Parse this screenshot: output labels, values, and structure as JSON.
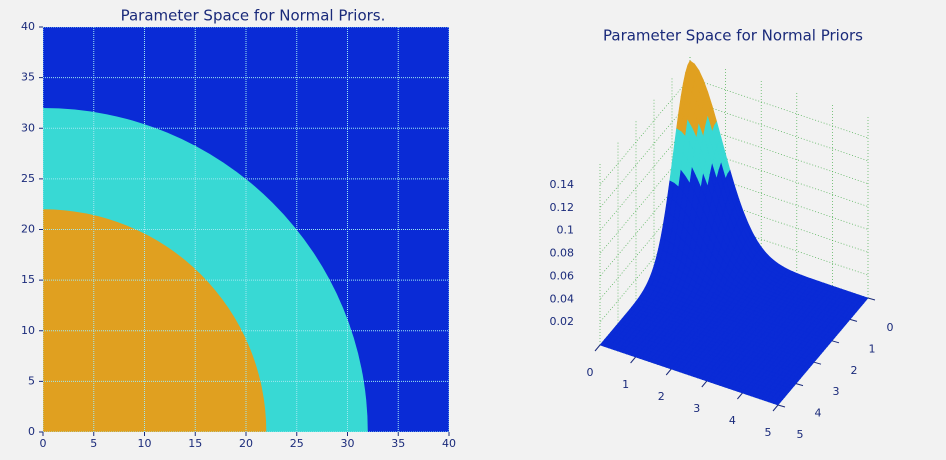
{
  "chart_data": [
    {
      "type": "regions",
      "title": "Parameter Space for Normal Priors.",
      "xlim": [
        0,
        40
      ],
      "ylim": [
        0,
        40
      ],
      "xticks": [
        0,
        5,
        10,
        15,
        20,
        25,
        30,
        35,
        40
      ],
      "yticks": [
        0,
        5,
        10,
        15,
        20,
        25,
        30,
        35,
        40
      ],
      "grid": true,
      "regions": [
        {
          "color": "#e0a020",
          "radius": 22
        },
        {
          "color": "#38d9d4",
          "radius": 32
        },
        {
          "color": "#0a2bd6"
        }
      ]
    },
    {
      "type": "surface3d",
      "title": "Parameter Space for Normal Priors",
      "xlim": [
        0,
        5
      ],
      "ylim": [
        0,
        5
      ],
      "zlim": [
        0,
        0.16
      ],
      "xticks": [
        0,
        1,
        2,
        3,
        4,
        5
      ],
      "yticks": [
        0,
        1,
        2,
        3,
        4,
        5
      ],
      "zticks": [
        0.02,
        0.04,
        0.06,
        0.08,
        0.1,
        0.12,
        0.14
      ],
      "peak": 0.155,
      "sigma": 0.9,
      "bands": [
        {
          "color": "#e0a020",
          "above": 0.11
        },
        {
          "color": "#38d9d4",
          "above": 0.075
        },
        {
          "color": "#0a2bd6",
          "above": 0
        }
      ]
    }
  ]
}
